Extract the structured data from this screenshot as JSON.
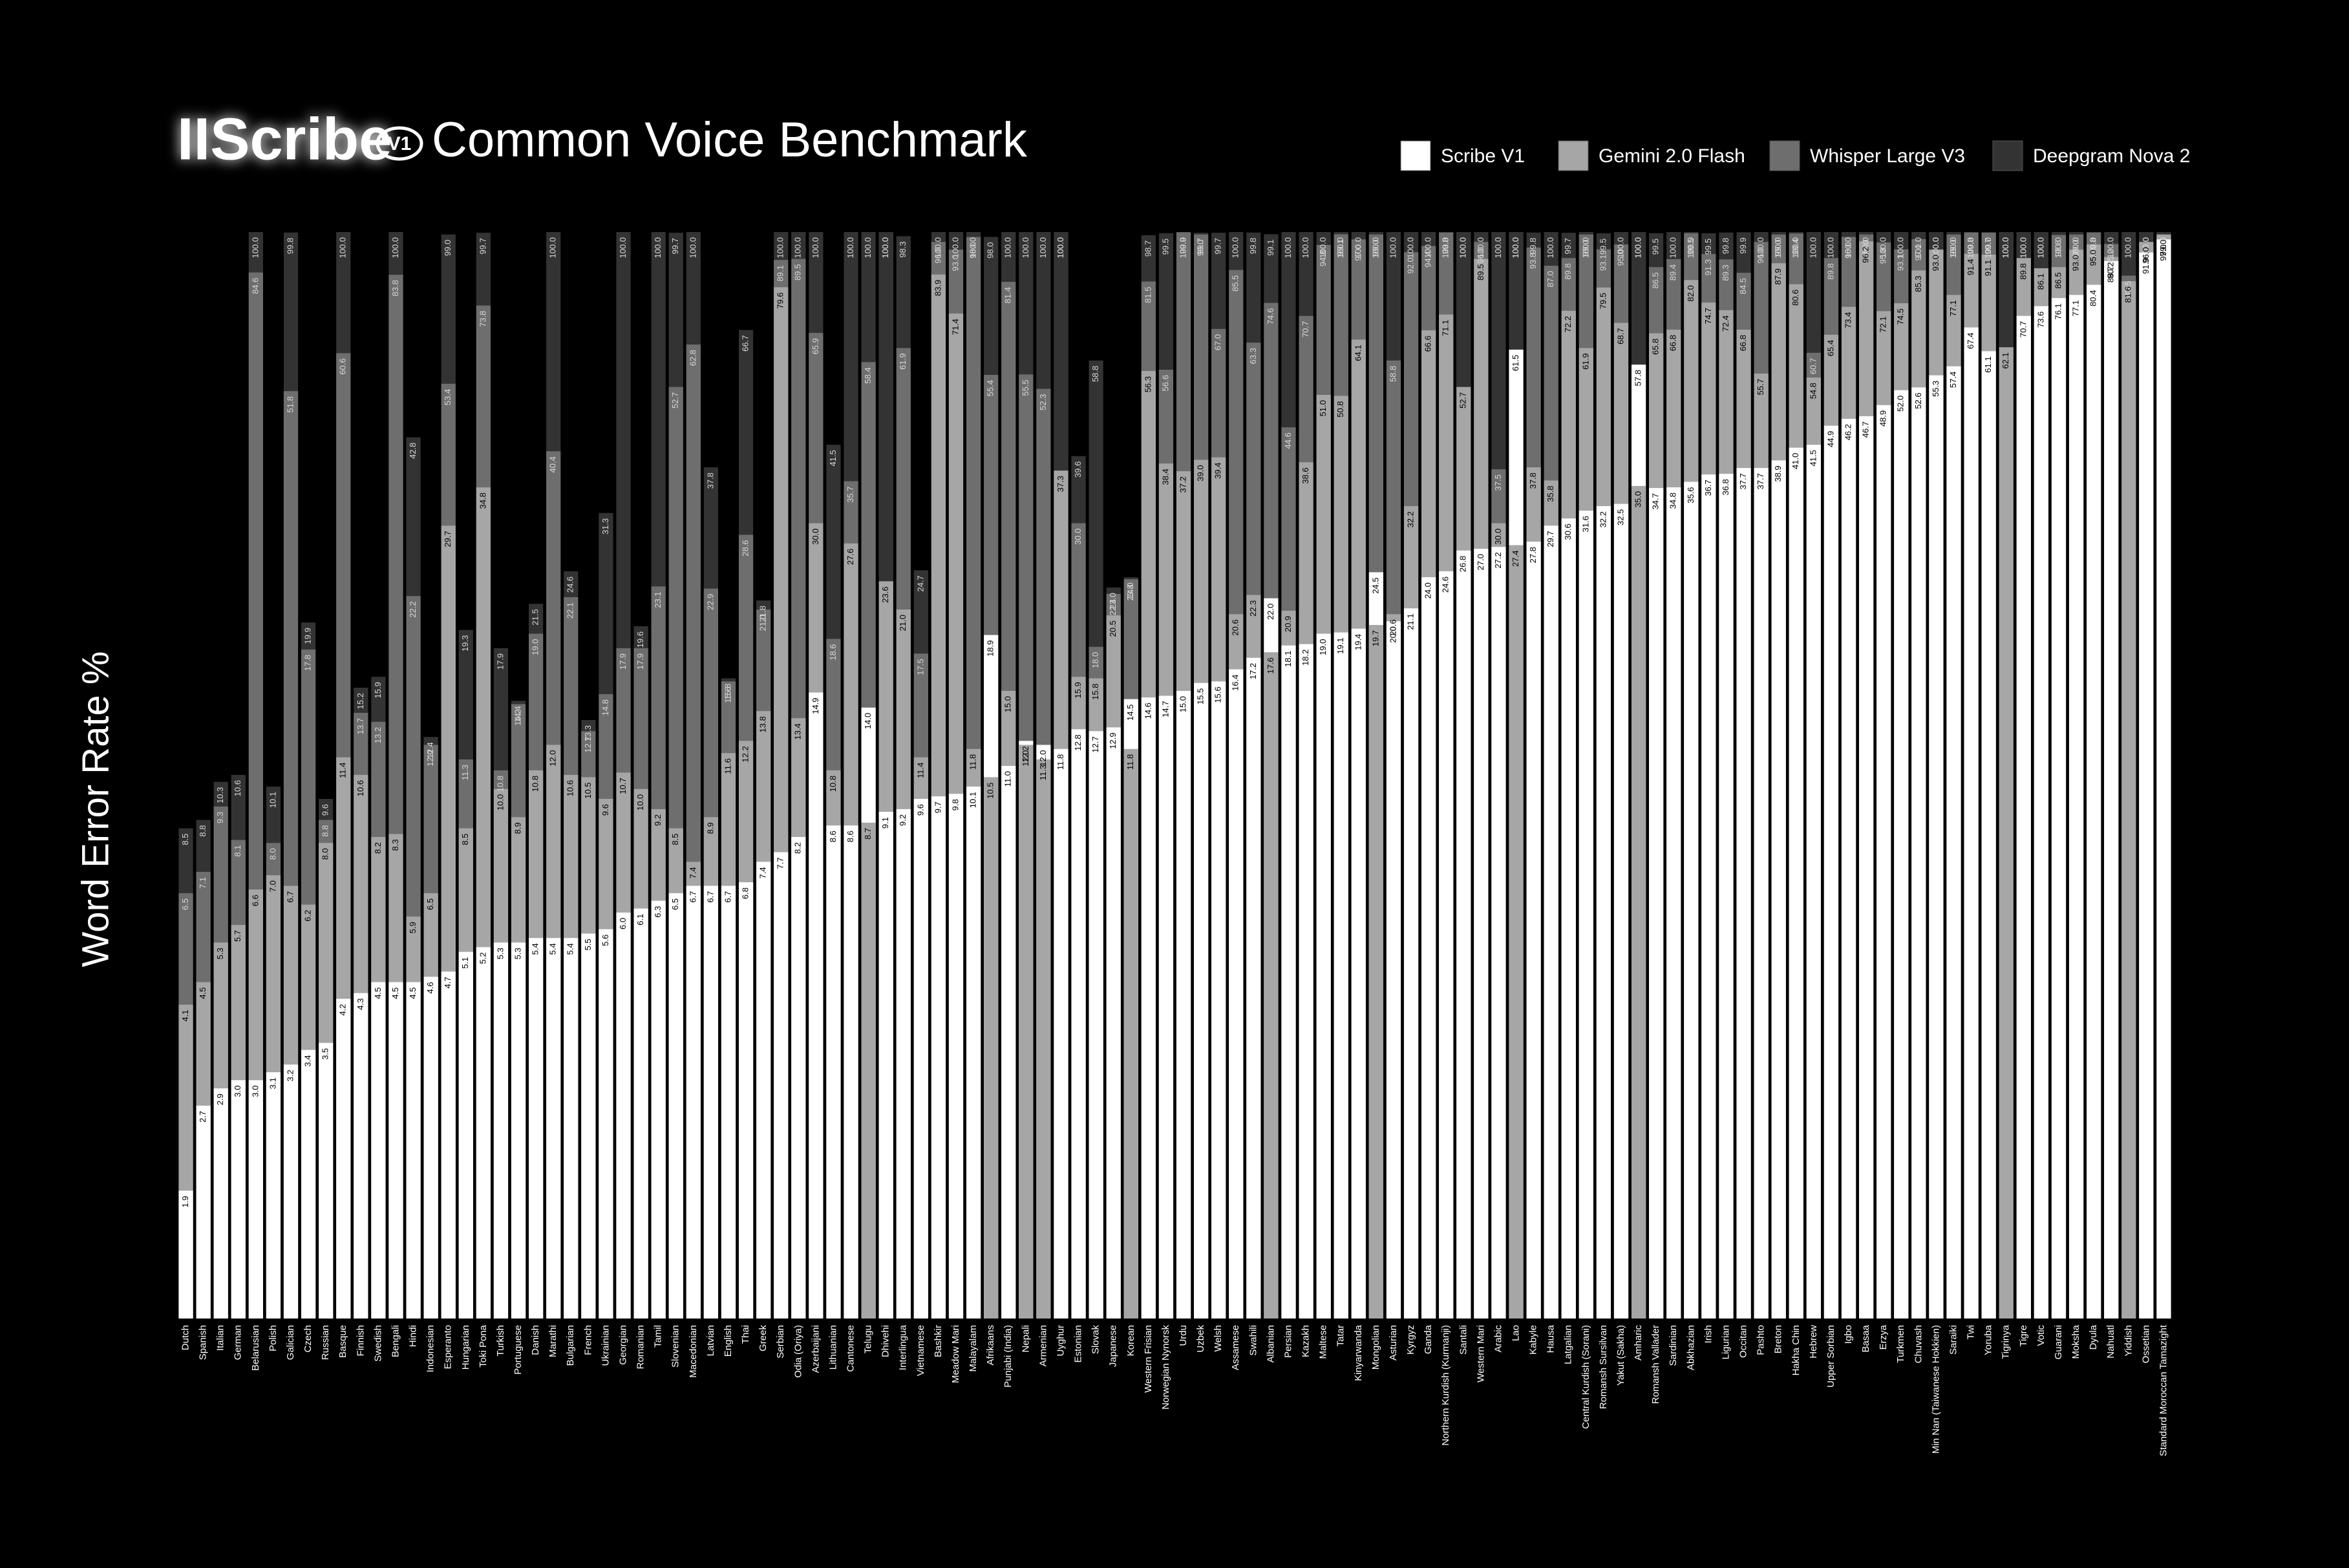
{
  "chart_data": {
    "type": "bar",
    "overlap": true,
    "log_scale": true,
    "grid": false,
    "legend": "top-right",
    "brand": "IIScribe",
    "version": "V1",
    "title": "Common Voice Benchmark",
    "ylabel": "Word Error Rate %",
    "ylim": [
      1.12,
      100
    ],
    "categories": [
      "Dutch",
      "Spanish",
      "Italian",
      "German",
      "Belarusian",
      "Polish",
      "Galician",
      "Czech",
      "Russian",
      "Basque",
      "Finnish",
      "Swedish",
      "Bengali",
      "Hindi",
      "Indonesian",
      "Esperanto",
      "Hungarian",
      "Toki Pona",
      "Turkish",
      "Portuguese",
      "Danish",
      "Marathi",
      "Bulgarian",
      "French",
      "Ukrainian",
      "Georgian",
      "Romanian",
      "Tamil",
      "Slovenian",
      "Macedonian",
      "Latvian",
      "English",
      "Thai",
      "Greek",
      "Serbian",
      "Odia (Oriya)",
      "Azerbaijani",
      "Lithuanian",
      "Cantonese",
      "Telugu",
      "Dhivehi",
      "Interlingua",
      "Vietnamese",
      "Bashkir",
      "Meadow Mari",
      "Malayalam",
      "Afrikaans",
      "Punjabi (India)",
      "Nepali",
      "Armenian",
      "Uyghur",
      "Estonian",
      "Slovak",
      "Japanese",
      "Korean",
      "Western Frisian",
      "Norwegian Nynorsk",
      "Urdu",
      "Uzbek",
      "Welsh",
      "Assamese",
      "Swahili",
      "Albanian",
      "Persian",
      "Kazakh",
      "Maltese",
      "Tatar",
      "Kinyarwanda",
      "Mongolian",
      "Asturian",
      "Kyrgyz",
      "Ganda",
      "Northern Kurdish (Kurmanji)",
      "Santali",
      "Western Mari",
      "Arabic",
      "Lao",
      "Kabyle",
      "Hausa",
      "Latgalian",
      "Central Kurdish (Sorani)",
      "Romansh Sursilvan",
      "Yakut (Sakha)",
      "Amharic",
      "Romansh Vallader",
      "Sardinian",
      "Abkhazian",
      "Irish",
      "Ligurian",
      "Occitan",
      "Pashto",
      "Breton",
      "Hakha Chin",
      "Hebrew",
      "Upper Sorbian",
      "Igbo",
      "Basaa",
      "Erzya",
      "Turkmen",
      "Chuvash",
      "Min Nan (Taiwanese Hokkien)",
      "Saraiki",
      "Twi",
      "Yoruba",
      "Tigrinya",
      "Tigre",
      "Votic",
      "Guarani",
      "Moksha",
      "Dyula",
      "Nahuatl",
      "Yiddish",
      "Ossetian",
      "Standard Moroccan Tamazight"
    ],
    "series": [
      {
        "name": "Scribe V1",
        "color": "#ffffff",
        "values": [
          1.9,
          2.7,
          2.9,
          3.0,
          3.0,
          3.1,
          3.2,
          3.4,
          3.5,
          4.2,
          4.3,
          4.5,
          4.5,
          4.5,
          4.6,
          4.7,
          5.1,
          5.2,
          5.3,
          5.3,
          5.4,
          5.4,
          5.4,
          5.5,
          5.6,
          6.0,
          6.1,
          6.3,
          6.5,
          6.7,
          6.7,
          6.7,
          6.8,
          7.4,
          7.7,
          8.2,
          14.9,
          8.6,
          8.6,
          14.0,
          9.1,
          9.2,
          9.6,
          9.7,
          9.8,
          10.1,
          18.9,
          11.0,
          12.2,
          12.0,
          11.8,
          12.8,
          12.7,
          12.9,
          14.5,
          14.6,
          14.7,
          15.0,
          15.5,
          15.6,
          16.4,
          17.2,
          22.0,
          18.1,
          18.2,
          19.0,
          19.1,
          19.4,
          24.5,
          20.0,
          21.1,
          24.0,
          24.6,
          26.8,
          27.0,
          27.2,
          61.5,
          27.8,
          29.7,
          30.6,
          31.6,
          32.2,
          32.5,
          57.8,
          34.7,
          34.8,
          35.6,
          36.7,
          36.8,
          37.7,
          37.7,
          38.9,
          41.0,
          41.5,
          44.9,
          46.2,
          46.7,
          48.9,
          52.0,
          52.6,
          55.3,
          57.4,
          67.4,
          61.1,
          null,
          70.7,
          73.6,
          76.1,
          77.1,
          80.4,
          88.7,
          null,
          91.9,
          97.0
        ],
        "value_labels": [
          "1.9",
          "2.7",
          "2.9",
          "3.0",
          "3.0",
          "3.1",
          "3.2",
          "3.4",
          "3.5",
          "4.2",
          "4.3",
          "4.5",
          "4.5",
          "4.5",
          "4.6",
          "4.7",
          "5.1",
          "5.2",
          "5.3",
          "5.3",
          "5.4",
          "5.4",
          "5.4",
          "5.5",
          "5.6",
          "6.0",
          "6.1",
          "6.3",
          "6.5",
          "6.7",
          "6.7",
          "6.7",
          "6.8",
          "7.4",
          "7.7",
          "8.2",
          "14.9",
          "8.6",
          "8.6",
          "14.0",
          "9.1",
          "9.2",
          "9.6",
          "9.7",
          "9.8",
          "10.1",
          "18.9",
          "11.0",
          "12.2",
          "12.0",
          "11.8",
          "12.8",
          "12.7",
          "12.9",
          "14.5",
          "14.6",
          "14.7",
          "15.0",
          "15.5",
          "15.6",
          "16.4",
          "17.2",
          "22.0",
          "18.1",
          "18.2",
          "19.0",
          "19.1",
          "19.4",
          "24.5",
          "20.0",
          "21.1",
          "24.0",
          "24.6",
          "26.8",
          "27.0",
          "27.2",
          "61.5",
          "27.8",
          "29.7",
          "30.6",
          "31.6",
          "32.2",
          "32.5",
          "57.8",
          "34.7",
          "34.8",
          "35.6",
          "36.7",
          "36.8",
          "37.7",
          "37.7",
          "38.9",
          "41.0",
          "41.5",
          "44.9",
          "46.2",
          "46.7",
          "48.9",
          "52.0",
          "52.6",
          "55.3",
          "57.4",
          "67.4",
          "61.1",
          null,
          "70.7",
          "73.6",
          "76.1",
          "77.1",
          "80.4",
          "88.7",
          null,
          "91.9",
          "97.0"
        ]
      },
      {
        "name": "Gemini 2.0 Flash",
        "color": "#a6a6a6",
        "values": [
          4.1,
          4.5,
          5.3,
          5.7,
          6.6,
          7.0,
          6.7,
          6.2,
          8.0,
          11.4,
          10.6,
          8.2,
          8.3,
          5.9,
          6.5,
          29.7,
          8.5,
          34.8,
          10.0,
          8.9,
          10.8,
          12.0,
          10.6,
          10.5,
          9.6,
          10.7,
          10.0,
          9.2,
          8.5,
          7.4,
          8.9,
          11.6,
          12.2,
          13.8,
          79.6,
          13.4,
          30.0,
          10.8,
          27.6,
          8.7,
          23.6,
          21.0,
          11.4,
          83.9,
          71.4,
          11.8,
          10.5,
          15.0,
          12.0,
          11.3,
          37.3,
          15.9,
          15.8,
          20.5,
          11.8,
          56.3,
          38.4,
          37.2,
          39.0,
          39.4,
          20.6,
          22.3,
          17.6,
          20.9,
          38.6,
          51.0,
          50.8,
          64.1,
          19.7,
          20.6,
          32.2,
          66.6,
          71.1,
          52.7,
          89.5,
          30.0,
          27.4,
          37.8,
          35.8,
          72.2,
          61.9,
          79.5,
          68.7,
          35.0,
          65.8,
          66.8,
          82.0,
          74.7,
          72.4,
          66.8,
          55.7,
          87.9,
          80.6,
          54.8,
          65.4,
          73.4,
          96.2,
          72.1,
          74.5,
          85.3,
          93.0,
          77.1,
          91.4,
          91.1,
          62.1,
          89.8,
          86.1,
          86.5,
          93.0,
          95.0,
          90.2,
          81.6,
          96.0,
          99.0
        ],
        "value_labels": [
          "4.1",
          "4.5",
          "5.3",
          "5.7",
          "6.6",
          "7.0",
          "6.7",
          "6.2",
          "8.0",
          "11.4",
          "10.6",
          "8.2",
          "8.3",
          "5.9",
          "6.5",
          "29.7",
          "8.5",
          "34.8",
          "10.0",
          "8.9",
          "10.8",
          "12.0",
          "10.6",
          "10.5",
          "9.6",
          "10.7",
          "10.0",
          "9.2",
          "8.5",
          "7.4",
          "8.9",
          "11.6",
          "12.2",
          "13.8",
          "79.6",
          "13.4",
          "30.0",
          "10.8",
          "27.6",
          "8.7",
          "23.6",
          "21.0",
          "11.4",
          "83.9",
          "71.4",
          "11.8",
          "10.5",
          "15.0",
          "12.0",
          "11.3",
          "37.3",
          "15.9",
          "15.8",
          "20.5",
          "11.8",
          "56.3",
          "38.4",
          "37.2",
          "39.0",
          "39.4",
          "20.6",
          "22.3",
          "17.6",
          "20.9",
          "38.6",
          "51.0",
          "50.8",
          "64.1",
          "19.7",
          "20.6",
          "32.2",
          "66.6",
          "71.1",
          "52.7",
          "89.5",
          "30.0",
          "27.4",
          "37.8",
          "35.8",
          "72.2",
          "61.9",
          "79.5",
          "68.7",
          "35.0",
          "65.8",
          "66.8",
          "82.0",
          "74.7",
          "72.4",
          "66.8",
          "55.7",
          "87.9",
          "80.6",
          "54.8",
          "65.4",
          "73.4",
          "96.2",
          "72.1",
          "74.5",
          "85.3",
          "93.0",
          "77.1",
          "91.4",
          "91.1",
          "62.1",
          "89.8",
          "86.1",
          "86.5",
          "93.0",
          "95.0",
          "90.2",
          "81.6",
          "96.0",
          "99.0"
        ]
      },
      {
        "name": "Whisper Large V3",
        "color": "#6e6e6e",
        "values": [
          6.5,
          7.1,
          9.3,
          8.1,
          84.6,
          8.0,
          51.8,
          17.8,
          8.8,
          60.6,
          13.7,
          13.2,
          83.8,
          22.2,
          12.0,
          53.4,
          11.3,
          73.8,
          10.8,
          14.2,
          19.0,
          40.4,
          22.1,
          12.7,
          14.8,
          17.9,
          17.9,
          23.1,
          52.7,
          62.8,
          22.9,
          15.6,
          28.6,
          21.0,
          89.1,
          89.5,
          65.9,
          18.6,
          35.7,
          58.4,
          100.0,
          61.9,
          17.5,
          96.0,
          93.0,
          98.0,
          55.4,
          81.4,
          55.5,
          52.3,
          100.0,
          30.0,
          18.0,
          22.4,
          23.8,
          81.5,
          56.6,
          99.9,
          99.0,
          67.0,
          85.5,
          63.3,
          74.6,
          44.6,
          70.7,
          94.8,
          99.1,
          97.0,
          99.0,
          58.8,
          92.0,
          94.4,
          99.8,
          100.0,
          96.0,
          37.5,
          100.0,
          93.8,
          87.0,
          89.8,
          99.0,
          93.1,
          95.0,
          100.0,
          86.5,
          89.4,
          99.5,
          91.3,
          89.3,
          84.5,
          96.0,
          99.0,
          99.4,
          60.7,
          89.8,
          98.0,
          99.0,
          95.8,
          93.1,
          97.1,
          100.0,
          99.0,
          99.8,
          99.7,
          100.0,
          100.0,
          100.0,
          98.8,
          99.0,
          99.8,
          95.2,
          83.5,
          100.0,
          100.0
        ],
        "value_labels": [
          "6.5",
          "7.1",
          "9.3",
          "8.1",
          "84.6",
          "8.0",
          "51.8",
          "17.8",
          "8.8",
          "60.6",
          "13.7",
          "13.2",
          "83.8",
          "22.2",
          "12.0",
          "53.4",
          "11.3",
          "73.8",
          "10.8",
          "14.2",
          "19.0",
          "40.4",
          "22.1",
          "12.7",
          "14.8",
          "17.9",
          "17.9",
          "23.1",
          "52.7",
          "62.8",
          "22.9",
          "15.6",
          "28.6",
          "21.0",
          "89.1",
          "89.5",
          "65.9",
          "18.6",
          "35.7",
          "58.4",
          "100.0",
          "61.9",
          "17.5",
          "96.0",
          "93.0",
          "98.0",
          "55.4",
          "81.4",
          "55.5",
          "52.3",
          "100.0",
          "30.0",
          "18.0",
          "22.4",
          "23.8",
          "81.5",
          "56.6",
          "99.9",
          "99.0",
          "67.0",
          "85.5",
          "63.3",
          "74.6",
          "44.6",
          "70.7",
          "94.8",
          "99.1",
          "97.0",
          "99.0",
          "58.8",
          "92.0",
          "94.4",
          "99.8",
          "100.0",
          "96.0",
          "37.5",
          "100.0",
          "93.8",
          "87.0",
          "89.8",
          "99.0",
          "93.1",
          "95.0",
          "100.0",
          "86.5",
          "89.4",
          "99.5",
          "91.3",
          "89.3",
          "84.5",
          "96.0",
          "99.0",
          "99.4",
          "60.7",
          "89.8",
          "98.0",
          "99.0",
          "95.8",
          "93.1",
          "97.1",
          "100.0",
          "99.0",
          "99.8",
          "99.7",
          "100.0",
          "100.0",
          "100.0",
          "98.8",
          "99.0",
          "99.8",
          "95.2",
          "83.5",
          "100.0",
          "100.0"
        ]
      },
      {
        "name": "Deepgram Nova 2",
        "color": "#333333",
        "values": [
          8.5,
          8.8,
          10.3,
          10.6,
          100.0,
          10.1,
          99.8,
          19.9,
          9.6,
          100.0,
          15.2,
          15.9,
          100.0,
          42.8,
          12.4,
          99.0,
          19.3,
          99.7,
          17.9,
          14.4,
          21.5,
          100.0,
          24.6,
          13.3,
          31.3,
          100.0,
          19.6,
          100.0,
          99.7,
          100.0,
          37.8,
          15.8,
          66.7,
          21.8,
          100.0,
          100.0,
          100.0,
          41.5,
          100.0,
          100.0,
          100.0,
          98.3,
          24.7,
          100.0,
          100.0,
          100.0,
          98.0,
          100.0,
          100.0,
          100.0,
          100.0,
          39.6,
          58.8,
          23.0,
          24.0,
          98.7,
          99.5,
          100.0,
          99.7,
          99.7,
          100.0,
          99.8,
          99.1,
          100.0,
          100.0,
          100.0,
          100.0,
          100.0,
          100.0,
          100.0,
          100.0,
          100.0,
          100.0,
          100.0,
          100.0,
          100.0,
          100.0,
          99.8,
          100.0,
          99.7,
          100.0,
          99.5,
          100.0,
          100.0,
          99.5,
          100.0,
          100.0,
          99.5,
          99.8,
          99.9,
          100.0,
          100.0,
          100.0,
          100.0,
          100.0,
          100.0,
          100.0,
          100.0,
          100.0,
          100.0,
          100.0,
          100.0,
          100.0,
          100.0,
          100.0,
          100.0,
          100.0,
          100.0,
          100.0,
          100.0,
          100.0,
          100.0,
          100.0,
          100.0
        ],
        "value_labels": [
          "8.5",
          "8.8",
          "10.3",
          "10.6",
          "100.0",
          "10.1",
          "99.8",
          "19.9",
          "9.6",
          "100.0",
          "15.2",
          "15.9",
          "100.0",
          "42.8",
          "12.4",
          "99.0",
          "19.3",
          "99.7",
          "17.9",
          "14.4",
          "21.5",
          "100.0",
          "24.6",
          "13.3",
          "31.3",
          "100.0",
          "19.6",
          "100.0",
          "99.7",
          "100.0",
          "37.8",
          "15.8",
          "66.7",
          "21.8",
          "100.0",
          "100.0",
          "100.0",
          "41.5",
          "100.0",
          "100.0",
          "100.0",
          "98.3",
          "24.7",
          "100.0",
          "100.0",
          "100.0",
          "98.0",
          "100.0",
          "100.0",
          "100.0",
          "100.0",
          "39.6",
          "58.8",
          "23.0",
          "24.0",
          "98.7",
          "99.5",
          "100.0",
          "99.7",
          "99.7",
          "100.0",
          "99.8",
          "99.1",
          "100.0",
          "100.0",
          "100.0",
          "100.0",
          "100.0",
          "100.0",
          "100.0",
          "100.0",
          "100.0",
          "100.0",
          "100.0",
          "100.0",
          "100.0",
          "100.0",
          "99.8",
          "100.0",
          "99.7",
          "100.0",
          "99.5",
          "100.0",
          "100.0",
          "99.5",
          "100.0",
          "100.0",
          "99.5",
          "99.8",
          "99.9",
          "100.0",
          "100.0",
          "100.0",
          "100.0",
          "100.0",
          "100.0",
          "100.0",
          "100.0",
          "100.0",
          "100.0",
          "100.0",
          "100.0",
          "100.0",
          "100.0",
          "100.0",
          "100.0",
          "100.0",
          "100.0",
          "100.0",
          "100.0",
          "100.0",
          "100.0",
          "100.0",
          "100.0"
        ]
      }
    ]
  }
}
